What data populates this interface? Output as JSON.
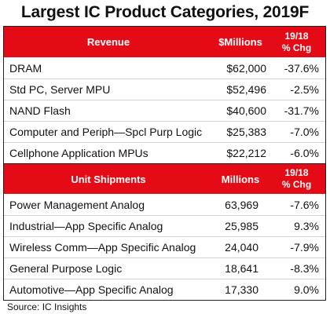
{
  "title": "Largest IC Product Categories, 2019F",
  "revenue": {
    "header": {
      "category": "Revenue",
      "value": "$Millions",
      "change_line1": "19/18",
      "change_line2": "% Chg"
    },
    "rows": [
      {
        "name": "DRAM",
        "value": "$62,000",
        "change": "-37.6%"
      },
      {
        "name": "Std PC, Server MPU",
        "value": "$52,496",
        "change": "-2.5%"
      },
      {
        "name": "NAND Flash",
        "value": "$40,600",
        "change": "-31.7%"
      },
      {
        "name": "Computer and Periph—Spcl Purp Logic",
        "value": "$25,383",
        "change": "-7.0%"
      },
      {
        "name": "Cellphone Application MPUs",
        "value": "$22,212",
        "change": "-6.0%"
      }
    ]
  },
  "units": {
    "header": {
      "category": "Unit Shipments",
      "value": "Millions",
      "change_line1": "19/18",
      "change_line2": "% Chg"
    },
    "rows": [
      {
        "name": "Power Management Analog",
        "value": "63,969",
        "change": "-7.6%"
      },
      {
        "name": "Industrial—App Specific Analog",
        "value": "25,985",
        "change": "9.3%"
      },
      {
        "name": "Wireless Comm—App Specific Analog",
        "value": "24,040",
        "change": "-7.9%"
      },
      {
        "name": "General Purpose Logic",
        "value": "18,641",
        "change": "-8.3%"
      },
      {
        "name": "Automotive—App Specific Analog",
        "value": "17,330",
        "change": "9.0%"
      }
    ]
  },
  "source": "Source:  IC Insights"
}
